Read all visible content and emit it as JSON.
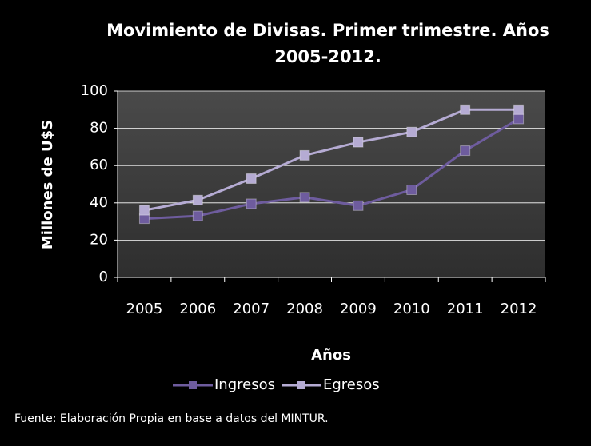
{
  "chart_data": {
    "type": "line",
    "title": "Movimiento de Divisas. Primer trimestre. Años 2005-2012.",
    "x_label": "Años",
    "y_label": "Millones de U$S",
    "footnote": "Fuente: Elaboración Propia en base a datos del MINTUR.",
    "categories": [
      "2005",
      "2006",
      "2007",
      "2008",
      "2009",
      "2010",
      "2011",
      "2012"
    ],
    "series": [
      {
        "name": "Ingresos",
        "color": "#6e5c9e",
        "values": [
          31.5,
          33,
          39.5,
          43,
          38.5,
          47,
          68,
          85
        ]
      },
      {
        "name": "Egresos",
        "color": "#b5abd3",
        "values": [
          36,
          41.5,
          53,
          65.5,
          72.5,
          78,
          90,
          90
        ]
      }
    ],
    "ylim": [
      0,
      100
    ],
    "yticks": [
      0,
      20,
      40,
      60,
      80,
      100
    ],
    "grid": true,
    "legend": "bottom"
  }
}
